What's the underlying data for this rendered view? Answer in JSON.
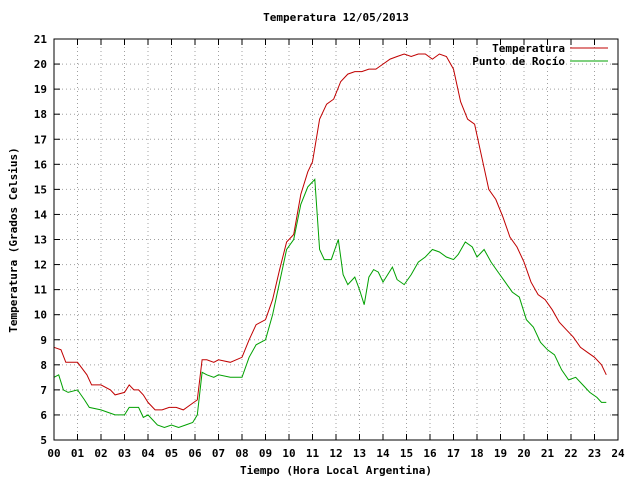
{
  "chart_data": {
    "type": "line",
    "title": "Temperatura 12/05/2013",
    "xlabel": "Tiempo (Hora Local Argentina)",
    "ylabel": "Temperatura (Grados Celsius)",
    "xlim": [
      0,
      24
    ],
    "ylim": [
      5,
      21
    ],
    "x_ticks": [
      0,
      1,
      2,
      3,
      4,
      5,
      6,
      7,
      8,
      9,
      10,
      11,
      12,
      13,
      14,
      15,
      16,
      17,
      18,
      19,
      20,
      21,
      22,
      23,
      24
    ],
    "x_tick_labels": [
      "00",
      "01",
      "02",
      "03",
      "04",
      "05",
      "06",
      "07",
      "08",
      "09",
      "10",
      "11",
      "12",
      "13",
      "14",
      "15",
      "16",
      "17",
      "18",
      "19",
      "20",
      "21",
      "22",
      "23",
      "24"
    ],
    "y_ticks": [
      5,
      6,
      7,
      8,
      9,
      10,
      11,
      12,
      13,
      14,
      15,
      16,
      17,
      18,
      19,
      20,
      21
    ],
    "y_tick_labels": [
      "5",
      "6",
      "7",
      "8",
      "9",
      "10",
      "11",
      "12",
      "13",
      "14",
      "15",
      "16",
      "17",
      "18",
      "19",
      "20",
      "21"
    ],
    "grid": true,
    "legend": "top-right",
    "series": [
      {
        "name": "Temperatura",
        "color": "#c00000",
        "x": [
          0,
          0.3,
          0.5,
          1,
          1.4,
          1.6,
          2,
          2.4,
          2.6,
          3,
          3.2,
          3.4,
          3.6,
          3.8,
          4,
          4.3,
          4.6,
          4.9,
          5.2,
          5.5,
          5.8,
          6.1,
          6.3,
          6.5,
          6.8,
          7,
          7.5,
          8,
          8.3,
          8.6,
          9,
          9.3,
          9.6,
          9.9,
          10.2,
          10.5,
          10.8,
          11,
          11.3,
          11.6,
          11.9,
          12.2,
          12.5,
          12.8,
          13.1,
          13.4,
          13.7,
          14,
          14.3,
          14.6,
          14.9,
          15.2,
          15.5,
          15.8,
          16.1,
          16.4,
          16.7,
          17,
          17.3,
          17.6,
          17.9,
          18.2,
          18.5,
          18.8,
          19.1,
          19.4,
          19.7,
          20,
          20.3,
          20.6,
          20.9,
          21.2,
          21.5,
          21.8,
          22.1,
          22.4,
          22.7,
          23,
          23.3,
          23.5
        ],
        "values": [
          8.7,
          8.6,
          8.1,
          8.1,
          7.6,
          7.2,
          7.2,
          7.0,
          6.8,
          6.9,
          7.2,
          7.0,
          7.0,
          6.8,
          6.5,
          6.2,
          6.2,
          6.3,
          6.3,
          6.2,
          6.4,
          6.6,
          8.2,
          8.2,
          8.1,
          8.2,
          8.1,
          8.3,
          9.0,
          9.6,
          9.8,
          10.6,
          11.8,
          12.9,
          13.2,
          14.8,
          15.7,
          16.1,
          17.8,
          18.4,
          18.6,
          19.3,
          19.6,
          19.7,
          19.7,
          19.8,
          19.8,
          20.0,
          20.2,
          20.3,
          20.4,
          20.3,
          20.4,
          20.4,
          20.2,
          20.4,
          20.3,
          19.8,
          18.5,
          17.8,
          17.6,
          16.3,
          15.0,
          14.6,
          13.9,
          13.1,
          12.7,
          12.1,
          11.3,
          10.8,
          10.6,
          10.2,
          9.7,
          9.4,
          9.1,
          8.7,
          8.5,
          8.3,
          8.0,
          7.6
        ]
      },
      {
        "name": "Punto de Rocío",
        "color": "#00a000",
        "x": [
          0,
          0.2,
          0.4,
          0.6,
          1,
          1.3,
          1.5,
          2,
          2.3,
          2.6,
          3,
          3.2,
          3.4,
          3.6,
          3.8,
          4,
          4.2,
          4.4,
          4.7,
          5,
          5.3,
          5.6,
          5.9,
          6.1,
          6.3,
          6.5,
          6.8,
          7,
          7.5,
          8,
          8.3,
          8.6,
          9,
          9.3,
          9.6,
          9.9,
          10.2,
          10.5,
          10.8,
          11,
          11.1,
          11.3,
          11.5,
          11.8,
          12.1,
          12.3,
          12.5,
          12.8,
          13.0,
          13.2,
          13.4,
          13.6,
          13.8,
          14.0,
          14.2,
          14.4,
          14.6,
          14.9,
          15.2,
          15.5,
          15.8,
          16.1,
          16.4,
          16.7,
          17.0,
          17.2,
          17.5,
          17.8,
          18.0,
          18.3,
          18.6,
          18.9,
          19.2,
          19.5,
          19.8,
          20.1,
          20.4,
          20.7,
          21.0,
          21.3,
          21.6,
          21.9,
          22.2,
          22.5,
          22.8,
          23.1,
          23.3,
          23.5
        ],
        "values": [
          7.5,
          7.6,
          7.0,
          6.9,
          7.0,
          6.6,
          6.3,
          6.2,
          6.1,
          6.0,
          6.0,
          6.3,
          6.3,
          6.3,
          5.9,
          6.0,
          5.8,
          5.6,
          5.5,
          5.6,
          5.5,
          5.6,
          5.7,
          6.0,
          7.7,
          7.6,
          7.5,
          7.6,
          7.5,
          7.5,
          8.3,
          8.8,
          9.0,
          10.0,
          11.3,
          12.6,
          13.0,
          14.4,
          15.1,
          15.3,
          15.4,
          12.6,
          12.2,
          12.2,
          13.0,
          11.6,
          11.2,
          11.5,
          11.0,
          10.4,
          11.5,
          11.8,
          11.7,
          11.3,
          11.6,
          11.9,
          11.4,
          11.2,
          11.6,
          12.1,
          12.3,
          12.6,
          12.5,
          12.3,
          12.2,
          12.4,
          12.9,
          12.7,
          12.3,
          12.6,
          12.1,
          11.7,
          11.3,
          10.9,
          10.7,
          9.8,
          9.5,
          8.9,
          8.6,
          8.4,
          7.8,
          7.4,
          7.5,
          7.2,
          6.9,
          6.7,
          6.5,
          6.5
        ]
      }
    ]
  }
}
